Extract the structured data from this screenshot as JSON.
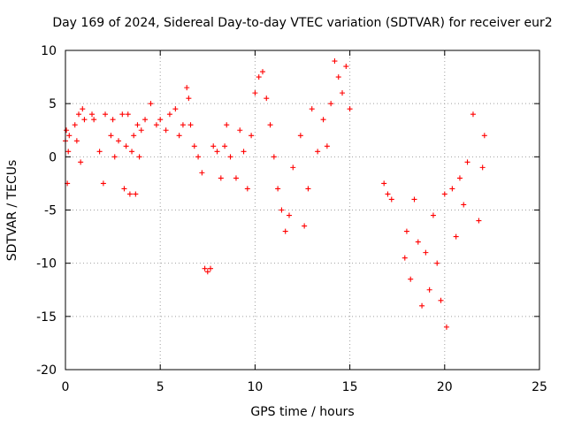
{
  "chart_data": {
    "type": "scatter",
    "title": "Day 169 of 2024, Sidereal Day-to-day VTEC variation (SDTVAR) for receiver eur2",
    "xlabel": "GPS time / hours",
    "ylabel": "SDTVAR / TECUs",
    "xlim": [
      0,
      25
    ],
    "ylim": [
      -20,
      10
    ],
    "xticks": [
      0,
      5,
      10,
      15,
      20,
      25
    ],
    "yticks": [
      -20,
      -15,
      -10,
      -5,
      0,
      5,
      10
    ],
    "grid": true,
    "marker": "plus",
    "color": "#ff0000",
    "series": [
      {
        "name": "SDTVAR",
        "x": [
          0.0,
          0.05,
          0.1,
          0.15,
          0.2,
          0.5,
          0.6,
          0.7,
          0.8,
          0.9,
          1.0,
          1.4,
          1.5,
          1.8,
          2.0,
          2.1,
          2.4,
          2.5,
          2.6,
          2.8,
          3.0,
          3.1,
          3.2,
          3.3,
          3.4,
          3.5,
          3.6,
          3.7,
          3.8,
          3.9,
          4.0,
          4.2,
          4.5,
          4.8,
          5.0,
          5.3,
          5.5,
          5.8,
          6.0,
          6.2,
          6.4,
          6.5,
          6.6,
          6.8,
          7.0,
          7.2,
          7.35,
          7.5,
          7.65,
          7.8,
          8.0,
          8.2,
          8.4,
          8.5,
          8.7,
          9.0,
          9.2,
          9.4,
          9.6,
          9.8,
          10.0,
          10.2,
          10.4,
          10.6,
          10.8,
          11.0,
          11.2,
          11.4,
          11.6,
          11.8,
          12.0,
          12.4,
          12.6,
          12.8,
          13.0,
          13.3,
          13.6,
          13.8,
          14.0,
          14.2,
          14.4,
          14.6,
          14.8,
          15.0,
          16.8,
          17.0,
          17.2,
          17.9,
          18.0,
          18.2,
          18.4,
          18.6,
          18.8,
          19.0,
          19.2,
          19.4,
          19.6,
          19.8,
          20.0,
          20.1,
          20.4,
          20.6,
          20.8,
          21.0,
          21.2,
          21.5,
          21.8,
          22.0,
          22.1
        ],
        "y": [
          1.5,
          2.5,
          -2.5,
          0.5,
          2.0,
          3.0,
          1.5,
          4.0,
          -0.5,
          4.5,
          3.5,
          4.0,
          3.5,
          0.5,
          -2.5,
          4.0,
          2.0,
          3.5,
          0.0,
          1.5,
          4.0,
          -3.0,
          1.0,
          4.0,
          -3.5,
          0.5,
          2.0,
          -3.5,
          3.0,
          0.0,
          2.5,
          3.5,
          5.0,
          3.0,
          3.5,
          2.5,
          4.0,
          4.5,
          2.0,
          3.0,
          6.5,
          5.5,
          3.0,
          1.0,
          0.0,
          -1.5,
          -10.5,
          -10.8,
          -10.5,
          1.0,
          0.5,
          -2.0,
          1.0,
          3.0,
          0.0,
          -2.0,
          2.5,
          0.5,
          -3.0,
          2.0,
          6.0,
          7.5,
          8.0,
          5.5,
          3.0,
          0.0,
          -3.0,
          -5.0,
          -7.0,
          -5.5,
          -1.0,
          2.0,
          -6.5,
          -3.0,
          4.5,
          0.5,
          3.5,
          1.0,
          5.0,
          9.0,
          7.5,
          6.0,
          8.5,
          4.5,
          -2.5,
          -3.5,
          -4.0,
          -9.5,
          -7.0,
          -11.5,
          -4.0,
          -8.0,
          -14.0,
          -9.0,
          -12.5,
          -5.5,
          -10.0,
          -13.5,
          -3.5,
          -16.0,
          -3.0,
          -7.5,
          -2.0,
          -4.5,
          -0.5,
          4.0,
          -6.0,
          -1.0,
          2.0
        ]
      }
    ]
  }
}
